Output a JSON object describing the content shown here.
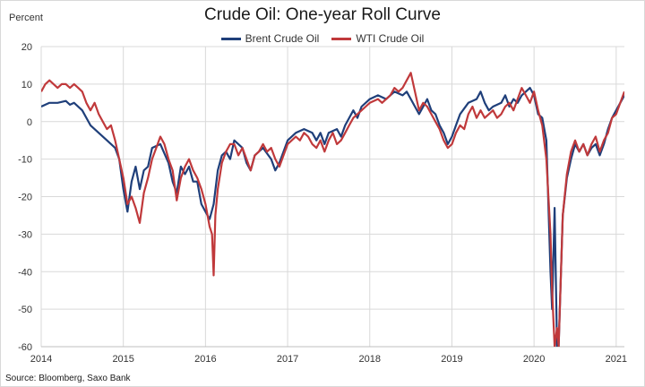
{
  "chart_data": {
    "type": "line",
    "title": "Crude Oil: One-year Roll Curve",
    "ylabel": "Percent",
    "xlabel": "",
    "source": "Source: Bloomberg, Saxo Bank",
    "ylim": [
      -60,
      20
    ],
    "xlim": [
      2014.0,
      2021.1
    ],
    "yticks": [
      20,
      10,
      0,
      -10,
      -20,
      -30,
      -40,
      -50,
      -60
    ],
    "xticks": [
      2014,
      2015,
      2016,
      2017,
      2018,
      2019,
      2020,
      2021
    ],
    "grid": true,
    "legend_position": "top-center",
    "series": [
      {
        "name": "Brent Crude Oil",
        "color": "#1f3f7a",
        "points": [
          [
            2014.0,
            4
          ],
          [
            2014.1,
            5
          ],
          [
            2014.2,
            5
          ],
          [
            2014.3,
            5.5
          ],
          [
            2014.35,
            4.5
          ],
          [
            2014.4,
            5
          ],
          [
            2014.5,
            3
          ],
          [
            2014.6,
            -1
          ],
          [
            2014.7,
            -3
          ],
          [
            2014.8,
            -5
          ],
          [
            2014.9,
            -7
          ],
          [
            2014.95,
            -10
          ],
          [
            2015.0,
            -18
          ],
          [
            2015.05,
            -24
          ],
          [
            2015.1,
            -16
          ],
          [
            2015.15,
            -12
          ],
          [
            2015.2,
            -18
          ],
          [
            2015.25,
            -13
          ],
          [
            2015.3,
            -12
          ],
          [
            2015.35,
            -7
          ],
          [
            2015.45,
            -6
          ],
          [
            2015.55,
            -11
          ],
          [
            2015.6,
            -16
          ],
          [
            2015.65,
            -19
          ],
          [
            2015.7,
            -12
          ],
          [
            2015.75,
            -14
          ],
          [
            2015.8,
            -12
          ],
          [
            2015.85,
            -16
          ],
          [
            2015.9,
            -16
          ],
          [
            2015.95,
            -22
          ],
          [
            2016.0,
            -24
          ],
          [
            2016.05,
            -26
          ],
          [
            2016.1,
            -22
          ],
          [
            2016.15,
            -13
          ],
          [
            2016.2,
            -9
          ],
          [
            2016.25,
            -8
          ],
          [
            2016.3,
            -10
          ],
          [
            2016.35,
            -5
          ],
          [
            2016.45,
            -7
          ],
          [
            2016.5,
            -11
          ],
          [
            2016.55,
            -13
          ],
          [
            2016.6,
            -9
          ],
          [
            2016.7,
            -7
          ],
          [
            2016.8,
            -10
          ],
          [
            2016.85,
            -13
          ],
          [
            2016.9,
            -11
          ],
          [
            2017.0,
            -5
          ],
          [
            2017.1,
            -3
          ],
          [
            2017.2,
            -2
          ],
          [
            2017.3,
            -3
          ],
          [
            2017.35,
            -5
          ],
          [
            2017.4,
            -3
          ],
          [
            2017.45,
            -6
          ],
          [
            2017.5,
            -3
          ],
          [
            2017.6,
            -2
          ],
          [
            2017.65,
            -4
          ],
          [
            2017.7,
            -1
          ],
          [
            2017.75,
            1
          ],
          [
            2017.8,
            3
          ],
          [
            2017.85,
            1
          ],
          [
            2017.9,
            4
          ],
          [
            2018.0,
            6
          ],
          [
            2018.1,
            7
          ],
          [
            2018.2,
            6
          ],
          [
            2018.3,
            8
          ],
          [
            2018.4,
            7
          ],
          [
            2018.45,
            8
          ],
          [
            2018.5,
            6
          ],
          [
            2018.55,
            4
          ],
          [
            2018.6,
            2
          ],
          [
            2018.65,
            4
          ],
          [
            2018.7,
            6
          ],
          [
            2018.75,
            3
          ],
          [
            2018.8,
            2
          ],
          [
            2018.85,
            -1
          ],
          [
            2018.9,
            -3
          ],
          [
            2018.95,
            -6
          ],
          [
            2019.0,
            -4
          ],
          [
            2019.05,
            -1
          ],
          [
            2019.1,
            2
          ],
          [
            2019.2,
            5
          ],
          [
            2019.3,
            6
          ],
          [
            2019.35,
            8
          ],
          [
            2019.4,
            5
          ],
          [
            2019.45,
            3
          ],
          [
            2019.5,
            4
          ],
          [
            2019.6,
            5
          ],
          [
            2019.65,
            7
          ],
          [
            2019.7,
            4
          ],
          [
            2019.75,
            6
          ],
          [
            2019.8,
            5
          ],
          [
            2019.85,
            7
          ],
          [
            2019.9,
            8
          ],
          [
            2019.95,
            9
          ],
          [
            2020.0,
            7
          ],
          [
            2020.05,
            2
          ],
          [
            2020.1,
            1
          ],
          [
            2020.15,
            -5
          ],
          [
            2020.2,
            -40
          ],
          [
            2020.22,
            -50
          ],
          [
            2020.25,
            -23
          ],
          [
            2020.28,
            -60
          ],
          [
            2020.3,
            -60
          ],
          [
            2020.35,
            -25
          ],
          [
            2020.4,
            -15
          ],
          [
            2020.45,
            -10
          ],
          [
            2020.5,
            -6
          ],
          [
            2020.55,
            -8
          ],
          [
            2020.6,
            -6
          ],
          [
            2020.65,
            -9
          ],
          [
            2020.7,
            -7
          ],
          [
            2020.75,
            -6
          ],
          [
            2020.8,
            -9
          ],
          [
            2020.85,
            -6
          ],
          [
            2020.9,
            -2
          ],
          [
            2020.95,
            1
          ],
          [
            2021.0,
            3
          ],
          [
            2021.05,
            5
          ],
          [
            2021.1,
            7
          ]
        ]
      },
      {
        "name": "WTI Crude Oil",
        "color": "#c0393b",
        "points": [
          [
            2014.0,
            8
          ],
          [
            2014.05,
            10
          ],
          [
            2014.1,
            11
          ],
          [
            2014.15,
            10
          ],
          [
            2014.2,
            9
          ],
          [
            2014.25,
            10
          ],
          [
            2014.3,
            10
          ],
          [
            2014.35,
            9
          ],
          [
            2014.4,
            10
          ],
          [
            2014.45,
            9
          ],
          [
            2014.5,
            8
          ],
          [
            2014.55,
            5
          ],
          [
            2014.6,
            3
          ],
          [
            2014.65,
            5
          ],
          [
            2014.7,
            2
          ],
          [
            2014.75,
            0
          ],
          [
            2014.8,
            -2
          ],
          [
            2014.85,
            -1
          ],
          [
            2014.9,
            -5
          ],
          [
            2014.95,
            -10
          ],
          [
            2015.0,
            -15
          ],
          [
            2015.05,
            -22
          ],
          [
            2015.1,
            -20
          ],
          [
            2015.15,
            -23
          ],
          [
            2015.2,
            -27
          ],
          [
            2015.25,
            -19
          ],
          [
            2015.3,
            -15
          ],
          [
            2015.35,
            -10
          ],
          [
            2015.4,
            -7
          ],
          [
            2015.45,
            -4
          ],
          [
            2015.5,
            -6
          ],
          [
            2015.55,
            -10
          ],
          [
            2015.6,
            -13
          ],
          [
            2015.65,
            -21
          ],
          [
            2015.7,
            -15
          ],
          [
            2015.75,
            -12
          ],
          [
            2015.8,
            -10
          ],
          [
            2015.85,
            -13
          ],
          [
            2015.9,
            -15
          ],
          [
            2015.95,
            -18
          ],
          [
            2016.0,
            -22
          ],
          [
            2016.05,
            -28
          ],
          [
            2016.08,
            -30
          ],
          [
            2016.1,
            -41
          ],
          [
            2016.12,
            -25
          ],
          [
            2016.15,
            -18
          ],
          [
            2016.2,
            -11
          ],
          [
            2016.25,
            -8
          ],
          [
            2016.3,
            -6
          ],
          [
            2016.35,
            -6
          ],
          [
            2016.4,
            -9
          ],
          [
            2016.45,
            -7
          ],
          [
            2016.5,
            -10
          ],
          [
            2016.55,
            -13
          ],
          [
            2016.6,
            -9
          ],
          [
            2016.65,
            -8
          ],
          [
            2016.7,
            -6
          ],
          [
            2016.75,
            -8
          ],
          [
            2016.8,
            -7
          ],
          [
            2016.85,
            -10
          ],
          [
            2016.9,
            -12
          ],
          [
            2016.95,
            -9
          ],
          [
            2017.0,
            -6
          ],
          [
            2017.1,
            -4
          ],
          [
            2017.15,
            -5
          ],
          [
            2017.2,
            -3
          ],
          [
            2017.25,
            -4
          ],
          [
            2017.3,
            -6
          ],
          [
            2017.35,
            -7
          ],
          [
            2017.4,
            -5
          ],
          [
            2017.45,
            -8
          ],
          [
            2017.5,
            -5
          ],
          [
            2017.55,
            -3
          ],
          [
            2017.6,
            -6
          ],
          [
            2017.65,
            -5
          ],
          [
            2017.7,
            -3
          ],
          [
            2017.75,
            -1
          ],
          [
            2017.8,
            1
          ],
          [
            2017.85,
            2
          ],
          [
            2017.9,
            3
          ],
          [
            2017.95,
            4
          ],
          [
            2018.0,
            5
          ],
          [
            2018.1,
            6
          ],
          [
            2018.15,
            5
          ],
          [
            2018.2,
            6
          ],
          [
            2018.25,
            7
          ],
          [
            2018.3,
            9
          ],
          [
            2018.35,
            8
          ],
          [
            2018.4,
            9
          ],
          [
            2018.45,
            11
          ],
          [
            2018.5,
            13
          ],
          [
            2018.55,
            8
          ],
          [
            2018.6,
            3
          ],
          [
            2018.65,
            5
          ],
          [
            2018.7,
            4
          ],
          [
            2018.75,
            2
          ],
          [
            2018.8,
            0
          ],
          [
            2018.85,
            -2
          ],
          [
            2018.9,
            -5
          ],
          [
            2018.95,
            -7
          ],
          [
            2019.0,
            -6
          ],
          [
            2019.05,
            -3
          ],
          [
            2019.1,
            -1
          ],
          [
            2019.15,
            -2
          ],
          [
            2019.2,
            2
          ],
          [
            2019.25,
            4
          ],
          [
            2019.3,
            1
          ],
          [
            2019.35,
            3
          ],
          [
            2019.4,
            1
          ],
          [
            2019.45,
            2
          ],
          [
            2019.5,
            3
          ],
          [
            2019.55,
            1
          ],
          [
            2019.6,
            2
          ],
          [
            2019.65,
            4
          ],
          [
            2019.7,
            5
          ],
          [
            2019.75,
            3
          ],
          [
            2019.8,
            6
          ],
          [
            2019.85,
            9
          ],
          [
            2019.9,
            7
          ],
          [
            2019.95,
            5
          ],
          [
            2020.0,
            8
          ],
          [
            2020.05,
            3
          ],
          [
            2020.1,
            -1
          ],
          [
            2020.15,
            -10
          ],
          [
            2020.2,
            -30
          ],
          [
            2020.22,
            -45
          ],
          [
            2020.25,
            -60
          ],
          [
            2020.28,
            -55
          ],
          [
            2020.3,
            -60
          ],
          [
            2020.35,
            -25
          ],
          [
            2020.4,
            -14
          ],
          [
            2020.45,
            -8
          ],
          [
            2020.5,
            -5
          ],
          [
            2020.55,
            -8
          ],
          [
            2020.6,
            -6
          ],
          [
            2020.65,
            -9
          ],
          [
            2020.7,
            -6
          ],
          [
            2020.75,
            -4
          ],
          [
            2020.8,
            -8
          ],
          [
            2020.85,
            -5
          ],
          [
            2020.9,
            -3
          ],
          [
            2020.95,
            1
          ],
          [
            2021.0,
            2
          ],
          [
            2021.05,
            5
          ],
          [
            2021.1,
            8
          ]
        ]
      }
    ]
  }
}
